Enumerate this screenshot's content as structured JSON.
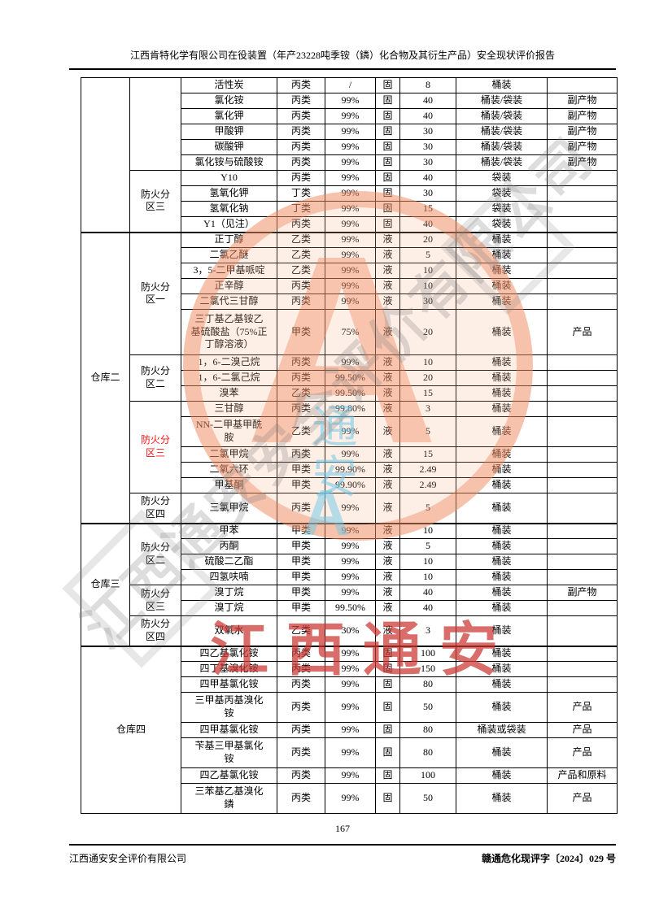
{
  "page": {
    "header_title": "江西肯特化学有限公司在役装置（年产23228吨季铵（鏻）化合物及其衍生产品）安全现状评价报告",
    "page_number": "167",
    "footer_left": "江西通安安全评价有限公司",
    "footer_right": "赣通危化现评字〔2024〕029 号"
  },
  "watermarks": {
    "stamp_letter": "A",
    "blue_chars": "通安",
    "blue_letter": "A",
    "gray_diagonal_text": "江西通安安全评价有限公司",
    "red_text": "江西通安",
    "colors": {
      "stamp_orange": "#ee8052",
      "watermark_red": "#ca3430",
      "watermark_gray": "#7d7d7d",
      "watermark_blue": "#6ec8e6",
      "zone_red_label": "#ff1111"
    }
  },
  "table": {
    "rows": [
      {
        "wh": {
          "text": "",
          "span": 10
        },
        "zone": {
          "text": "",
          "span": 6
        },
        "cells": [
          "活性炭",
          "丙类",
          "/",
          "固",
          "8",
          "桶装",
          ""
        ]
      },
      {
        "cells": [
          "氯化铵",
          "丙类",
          "99%",
          "固",
          "40",
          "桶装/袋装",
          "副产物"
        ]
      },
      {
        "cells": [
          "氯化钾",
          "丙类",
          "99%",
          "固",
          "40",
          "桶装/袋装",
          "副产物"
        ]
      },
      {
        "cells": [
          "甲酸钾",
          "丙类",
          "99%",
          "固",
          "30",
          "桶装/袋装",
          "副产物"
        ]
      },
      {
        "cells": [
          "碳酸钾",
          "丙类",
          "99%",
          "固",
          "30",
          "桶装/袋装",
          "副产物"
        ]
      },
      {
        "cells": [
          "氯化铵与硫酸铵",
          "丙类",
          "99%",
          "固",
          "30",
          "桶装/袋装",
          "副产物"
        ]
      },
      {
        "zone": {
          "text": "防火分\n区三",
          "span": 4
        },
        "cells": [
          "Y10",
          "丙类",
          "99%",
          "固",
          "40",
          "袋装",
          ""
        ]
      },
      {
        "cells": [
          "氢氧化钾",
          "丁类",
          "99%",
          "固",
          "30",
          "袋装",
          ""
        ]
      },
      {
        "cells": [
          "氢氧化钠",
          "丁类",
          "99%",
          "固",
          "15",
          "袋装",
          ""
        ]
      },
      {
        "cells": [
          "Y1（见注）",
          "丙类",
          "99%",
          "固",
          "40",
          "袋装",
          ""
        ]
      },
      {
        "sect": true,
        "wh": {
          "text": "仓库二",
          "span": 15
        },
        "zone": {
          "text": "防火分\n区一",
          "span": 6
        },
        "cells": [
          "正丁醇",
          "乙类",
          "99%",
          "液",
          "20",
          "桶装",
          ""
        ]
      },
      {
        "cells": [
          "二氯乙醚",
          "乙类",
          "99%",
          "液",
          "5",
          "桶装",
          ""
        ]
      },
      {
        "cells": [
          "3，5-二甲基哌啶",
          "乙类",
          "99%",
          "液",
          "10",
          "桶装",
          ""
        ]
      },
      {
        "cells": [
          "正辛醇",
          "丙类",
          "99%",
          "液",
          "10",
          "桶装",
          ""
        ]
      },
      {
        "cells": [
          "二氯代三甘醇",
          "丙类",
          "99%",
          "液",
          "30",
          "桶装",
          ""
        ]
      },
      {
        "h": 3,
        "cells": [
          "三丁基乙基铵乙\n基硫酸盐（75%正\n丁醇溶液）",
          "甲类",
          "75%",
          "液",
          "20",
          "桶装",
          "产品"
        ]
      },
      {
        "zone": {
          "text": "防火分\n区二",
          "span": 3
        },
        "cells": [
          "1，6-二溴己烷",
          "丙类",
          "99%",
          "液",
          "10",
          "桶装",
          ""
        ]
      },
      {
        "cells": [
          "1，6-二氯己烷",
          "丙类",
          "99.50%",
          "液",
          "20",
          "桶装",
          ""
        ]
      },
      {
        "cells": [
          "溴苯",
          "乙类",
          "99.50%",
          "液",
          "15",
          "桶装",
          ""
        ]
      },
      {
        "zone": {
          "text": "防火分\n区三",
          "span": 5,
          "red": true
        },
        "cells": [
          "三甘醇",
          "丙类",
          "99.80%",
          "液",
          "3",
          "桶装",
          ""
        ]
      },
      {
        "h": 2,
        "cells": [
          "NN-二甲基甲酰\n胺",
          "乙类",
          "99%",
          "液",
          "5",
          "桶装",
          ""
        ]
      },
      {
        "cells": [
          "二氯甲烷",
          "丙类",
          "99%",
          "液",
          "15",
          "桶装",
          ""
        ]
      },
      {
        "cells": [
          "二氧六环",
          "甲类",
          "99.90%",
          "液",
          "2.49",
          "桶装",
          ""
        ]
      },
      {
        "cells": [
          "甲基酮",
          "甲类",
          "99.90%",
          "液",
          "2.49",
          "桶装",
          ""
        ]
      },
      {
        "h": 2,
        "zone": {
          "text": "防火分\n区四",
          "span": 1
        },
        "cells": [
          "三氯甲烷",
          "丙类",
          "99%",
          "液",
          "5",
          "桶装",
          ""
        ]
      },
      {
        "sect": true,
        "wh": {
          "text": "仓库三",
          "span": 7
        },
        "zone": {
          "text": "防火分\n区二",
          "span": 4
        },
        "cells": [
          "甲苯",
          "甲类",
          "99%",
          "液",
          "10",
          "桶装",
          ""
        ]
      },
      {
        "cells": [
          "丙酮",
          "甲类",
          "99%",
          "液",
          "5",
          "桶装",
          ""
        ]
      },
      {
        "cells": [
          "硫酸二乙酯",
          "甲类",
          "99%",
          "液",
          "10",
          "桶装",
          ""
        ]
      },
      {
        "cells": [
          "四氢呋喃",
          "甲类",
          "99%",
          "液",
          "10",
          "桶装",
          ""
        ]
      },
      {
        "zone": {
          "text": "防火分\n区三",
          "span": 2
        },
        "cells": [
          "溴丁烷",
          "甲类",
          "99%",
          "液",
          "40",
          "桶装",
          "副产物"
        ]
      },
      {
        "cells": [
          "溴丁烷",
          "甲类",
          "99.50%",
          "液",
          "40",
          "桶装",
          ""
        ]
      },
      {
        "h": 2,
        "zone": {
          "text": "防火分\n区四",
          "span": 1
        },
        "cells": [
          "双氧水",
          "乙类",
          "30%",
          "液",
          "3",
          "桶装",
          ""
        ]
      },
      {
        "sect": true,
        "wh": {
          "text": "仓库四",
          "span": 8,
          "colspan": 2
        },
        "cells": [
          "四乙基氯化铵",
          "丙类",
          "99%",
          "固",
          "100",
          "桶装",
          ""
        ]
      },
      {
        "cells": [
          "四丁基溴化铵",
          "丙类",
          "99%",
          "固",
          "150",
          "桶装",
          ""
        ]
      },
      {
        "cells": [
          "四甲基氯化铵",
          "丙类",
          "99%",
          "固",
          "80",
          "桶装",
          ""
        ]
      },
      {
        "h": 2,
        "cells": [
          "三甲基丙基溴化\n铵",
          "丙类",
          "99%",
          "固",
          "50",
          "桶装",
          "产品"
        ]
      },
      {
        "cells": [
          "四甲基氯化铵",
          "丙类",
          "99%",
          "固",
          "80",
          "桶装或袋装",
          "产品"
        ]
      },
      {
        "h": 2,
        "cells": [
          "苄基三甲基氯化\n铵",
          "丙类",
          "99%",
          "固",
          "80",
          "桶装",
          "产品"
        ]
      },
      {
        "cells": [
          "四乙基氯化铵",
          "丙类",
          "99%",
          "固",
          "100",
          "桶装",
          "产品和原料"
        ]
      },
      {
        "h": 2,
        "cells": [
          "三苯基乙基溴化\n鏻",
          "丙类",
          "99%",
          "固",
          "50",
          "桶装",
          "产品"
        ]
      }
    ]
  }
}
